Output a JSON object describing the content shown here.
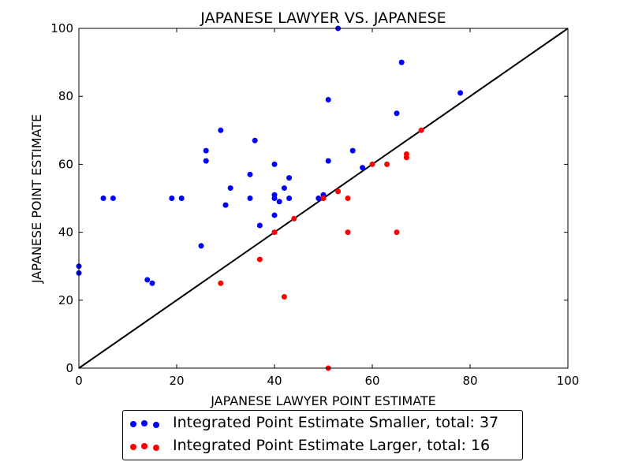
{
  "chart_data": {
    "type": "scatter",
    "title": "JAPANESE LAWYER VS. JAPANESE",
    "xlabel": "JAPANESE LAWYER POINT ESTIMATE",
    "ylabel": "JAPANESE POINT ESTIMATE",
    "xlim": [
      0,
      100
    ],
    "ylim": [
      0,
      100
    ],
    "xticks": [
      "0",
      "20",
      "40",
      "60",
      "80",
      "100"
    ],
    "yticks": [
      "0",
      "20",
      "40",
      "60",
      "80",
      "100"
    ],
    "grid": false,
    "legend_position": "below",
    "diagonal_line": {
      "from": [
        0,
        0
      ],
      "to": [
        100,
        100
      ],
      "color": "#000000"
    },
    "series": [
      {
        "name": "Integrated Point Estimate Smaller, total: 37",
        "color": "#0000ff",
        "points": [
          [
            0,
            30
          ],
          [
            0,
            28
          ],
          [
            5,
            50
          ],
          [
            7,
            50
          ],
          [
            14,
            26
          ],
          [
            15,
            25
          ],
          [
            19,
            50
          ],
          [
            21,
            50
          ],
          [
            25,
            36
          ],
          [
            26,
            64
          ],
          [
            26,
            61
          ],
          [
            29,
            70
          ],
          [
            30,
            48
          ],
          [
            31,
            53
          ],
          [
            35,
            57
          ],
          [
            35,
            50
          ],
          [
            36,
            67
          ],
          [
            37,
            42
          ],
          [
            40,
            60
          ],
          [
            40,
            51
          ],
          [
            40,
            50
          ],
          [
            40,
            45
          ],
          [
            41,
            49
          ],
          [
            42,
            53
          ],
          [
            43,
            56
          ],
          [
            43,
            50
          ],
          [
            49,
            50
          ],
          [
            50,
            51
          ],
          [
            51,
            79
          ],
          [
            51,
            61
          ],
          [
            53,
            100
          ],
          [
            56,
            64
          ],
          [
            58,
            59
          ],
          [
            65,
            75
          ],
          [
            66,
            90
          ],
          [
            78,
            81
          ],
          [
            50,
            50
          ]
        ]
      },
      {
        "name": "Integrated Point Estimate Larger, total: 16",
        "color": "#ff0000",
        "points": [
          [
            29,
            25
          ],
          [
            37,
            32
          ],
          [
            40,
            40
          ],
          [
            42,
            21
          ],
          [
            50,
            50
          ],
          [
            51,
            0
          ],
          [
            53,
            52
          ],
          [
            55,
            50
          ],
          [
            55,
            40
          ],
          [
            63,
            60
          ],
          [
            65,
            40
          ],
          [
            67,
            63
          ],
          [
            67,
            62
          ],
          [
            70,
            70
          ],
          [
            44,
            44
          ],
          [
            60,
            60
          ]
        ]
      }
    ]
  }
}
